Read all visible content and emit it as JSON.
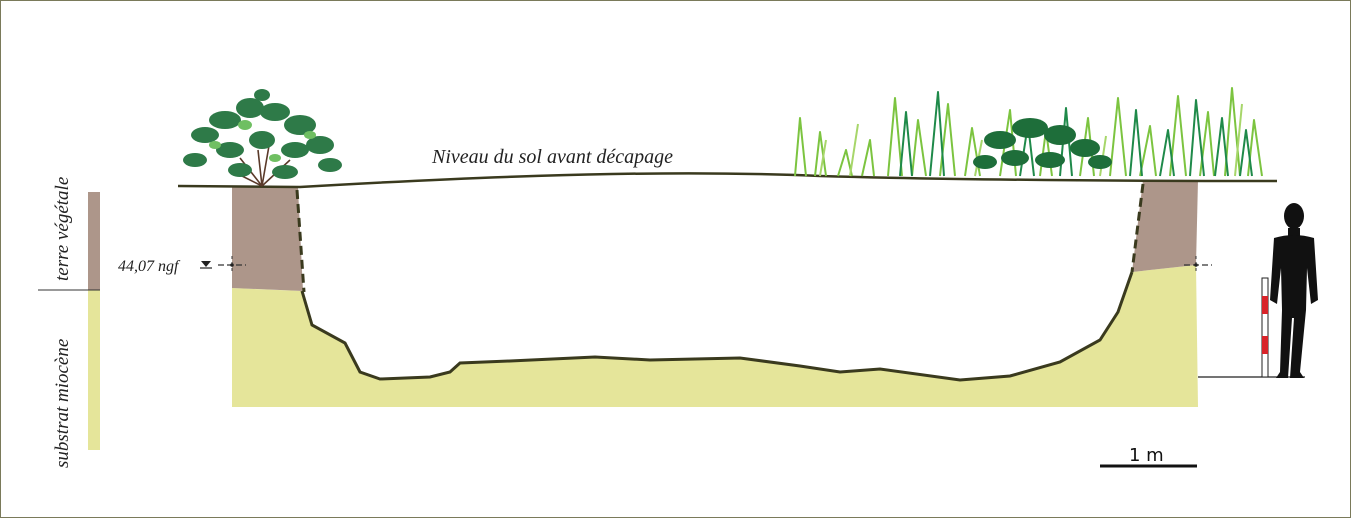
{
  "ground_label": "Niveau du sol avant décapage",
  "elevation_label": "44,07 ngf",
  "legend": {
    "topsoil_label": "terre végétale",
    "substrate_label": "substrat miocène"
  },
  "scale_label": "1 m",
  "colors": {
    "topsoil": "#ad968a",
    "substrate": "#e5e59a",
    "outline": "#3a3a1e",
    "grass_light": "#7cc440",
    "grass_dark": "#1f8a4a",
    "shrub": "#2e7a48",
    "human": "#111111",
    "rod_red": "#d8242a"
  }
}
